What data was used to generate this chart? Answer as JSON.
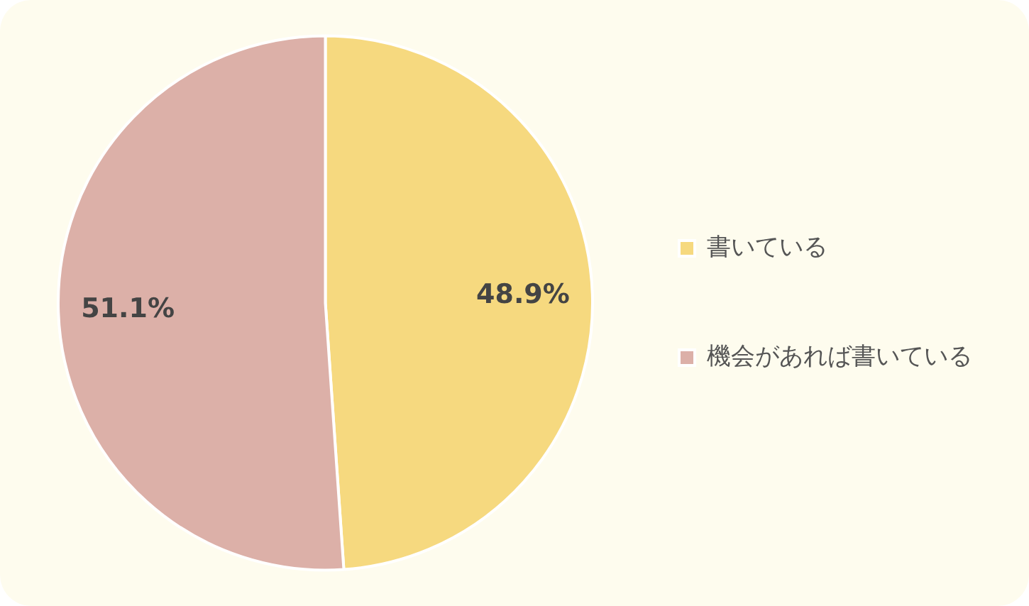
{
  "chart_data": {
    "type": "pie",
    "categories": [
      "書いている",
      "機会があれば書いている"
    ],
    "values": [
      48.9,
      51.1
    ],
    "colors": [
      "#f6d97f",
      "#dcb0a8"
    ],
    "value_labels": [
      "48.9%",
      "51.1%"
    ],
    "legend": "right"
  }
}
